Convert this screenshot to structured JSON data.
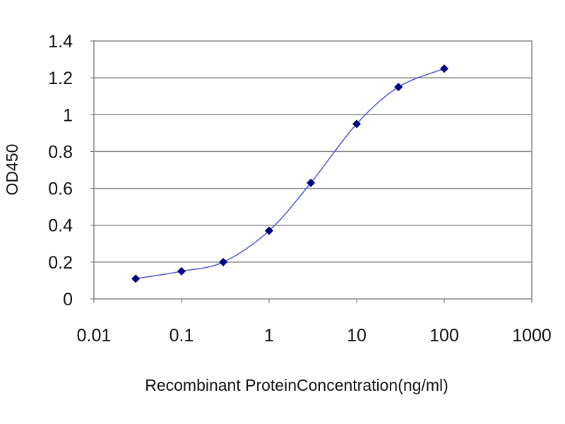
{
  "chart_data": {
    "type": "line",
    "title": "",
    "xlabel": "Recombinant ProteinConcentration(ng/ml)",
    "ylabel": "OD450",
    "x_scale": "log",
    "xlim": [
      0.01,
      1000
    ],
    "ylim": [
      0,
      1.4
    ],
    "x_ticks": [
      "0.01",
      "0.1",
      "1",
      "10",
      "100",
      "1000"
    ],
    "y_ticks": [
      "0",
      "0.2",
      "0.4",
      "0.6",
      "0.8",
      "1",
      "1.2",
      "1.4"
    ],
    "grid": "horizontal",
    "series": [
      {
        "x": [
          0.03,
          0.1,
          0.3,
          1,
          3,
          10,
          30,
          100
        ],
        "y": [
          0.11,
          0.15,
          0.2,
          0.37,
          0.63,
          0.95,
          1.15,
          1.25
        ]
      }
    ],
    "line_color": "#5b5bd6",
    "marker_color": "#000080",
    "plot_background": "#ffffff",
    "grid_color": "#888888"
  }
}
